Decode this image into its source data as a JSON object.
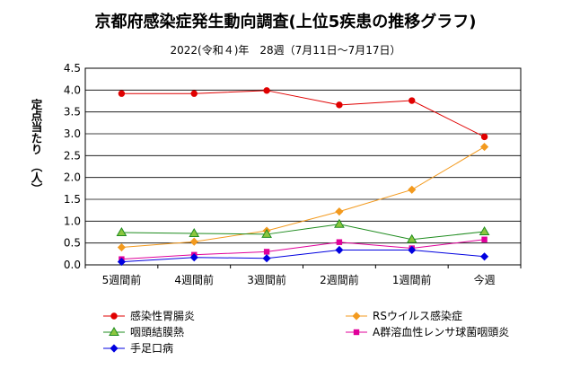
{
  "chart_data": {
    "type": "line",
    "title": "京都府感染症発生動向調査(上位5疾患の推移グラフ)",
    "subtitle": "2022(令和４)年　28週（7月11日～7月17日）",
    "ylabel": "定点当たり　（人）",
    "xlabel": "",
    "categories": [
      "5週間前",
      "4週間前",
      "3週間前",
      "2週間前",
      "1週間前",
      "今週"
    ],
    "ylim": [
      0,
      4.5
    ],
    "yticks": [
      "0.0",
      "0.5",
      "1.0",
      "1.5",
      "2.0",
      "2.5",
      "3.0",
      "3.5",
      "4.0",
      "4.5"
    ],
    "grid": "horizontal",
    "legend_position": "bottom",
    "series": [
      {
        "name": "感染性胃腸炎",
        "color": "#e00000",
        "marker": "circle",
        "values": [
          3.92,
          3.92,
          3.99,
          3.66,
          3.76,
          2.93
        ]
      },
      {
        "name": "RSウイルス感染症",
        "color": "#f39a1e",
        "marker": "diamond",
        "values": [
          0.4,
          0.53,
          0.78,
          1.22,
          1.72,
          2.7
        ]
      },
      {
        "name": "咽頭結膜熱",
        "color": "#1f8c1f",
        "fill": "#8cc63f",
        "marker": "triangle",
        "values": [
          0.74,
          0.72,
          0.7,
          0.93,
          0.58,
          0.76
        ]
      },
      {
        "name": "A群溶血性レンサ球菌咽頭炎",
        "color": "#e0009a",
        "marker": "square",
        "values": [
          0.13,
          0.23,
          0.3,
          0.52,
          0.38,
          0.58
        ]
      },
      {
        "name": "手足口病",
        "color": "#0000e0",
        "marker": "diamond",
        "values": [
          0.07,
          0.17,
          0.15,
          0.34,
          0.34,
          0.19
        ]
      }
    ]
  }
}
